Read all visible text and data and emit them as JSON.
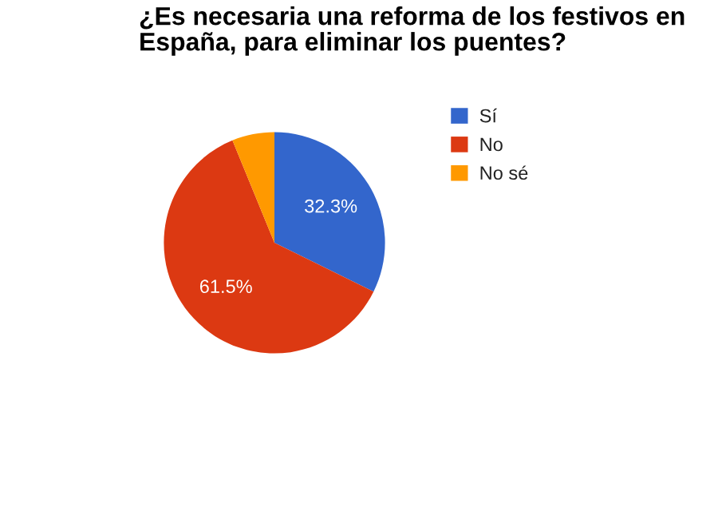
{
  "chart_data": {
    "type": "pie",
    "title": "¿Es necesaria una reforma de los festivos en España, para eliminar los puentes?",
    "categories": [
      "Sí",
      "No",
      "No sé"
    ],
    "values": [
      32.3,
      61.5,
      6.2
    ],
    "colors": [
      "#3366cc",
      "#dc3912",
      "#ff9900"
    ],
    "value_labels": [
      "32.3%",
      "61.5%",
      null
    ],
    "legend": "right"
  }
}
